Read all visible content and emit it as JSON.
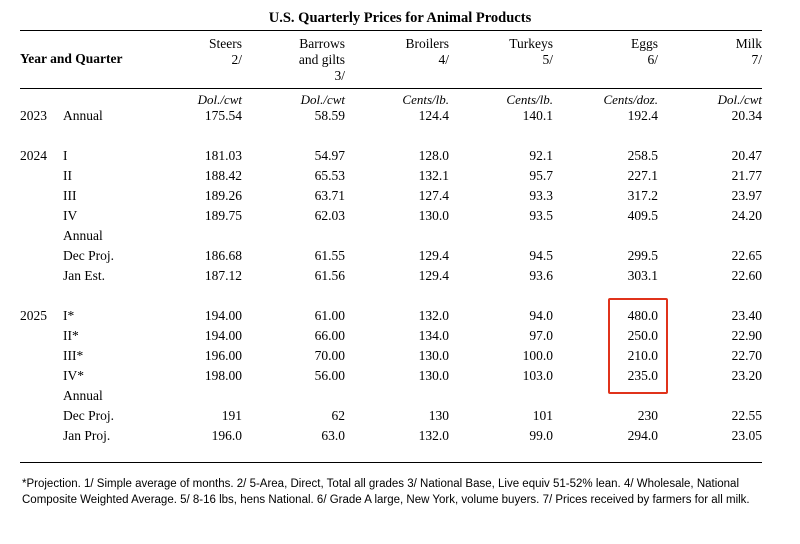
{
  "title": "U.S. Quarterly Prices for Animal Products",
  "row_header": "Year and Quarter",
  "columns": [
    {
      "name": "Steers",
      "note": "2/",
      "unit": "Dol./cwt"
    },
    {
      "name": "Barrows",
      "name2": "and gilts",
      "note": "3/",
      "unit": "Dol./cwt"
    },
    {
      "name": "Broilers",
      "note": "4/",
      "unit": "Cents/lb."
    },
    {
      "name": "Turkeys",
      "note": "5/",
      "unit": "Cents/lb."
    },
    {
      "name": "Eggs",
      "note": "6/",
      "unit": "Cents/doz."
    },
    {
      "name": "Milk",
      "note": "7/",
      "unit": "Dol./cwt"
    }
  ],
  "rows": [
    {
      "year": "2023",
      "label": "Annual",
      "values": [
        "175.54",
        "58.59",
        "124.4",
        "140.1",
        "192.4",
        "20.34"
      ]
    },
    {
      "year": "2024",
      "label": "I",
      "values": [
        "181.03",
        "54.97",
        "128.0",
        "92.1",
        "258.5",
        "20.47"
      ]
    },
    {
      "year": "",
      "label": "II",
      "values": [
        "188.42",
        "65.53",
        "132.1",
        "95.7",
        "227.1",
        "21.77"
      ]
    },
    {
      "year": "",
      "label": "III",
      "values": [
        "189.26",
        "63.71",
        "127.4",
        "93.3",
        "317.2",
        "23.97"
      ]
    },
    {
      "year": "",
      "label": "IV",
      "values": [
        "189.75",
        "62.03",
        "130.0",
        "93.5",
        "409.5",
        "24.20"
      ]
    },
    {
      "year": "",
      "label": "Annual",
      "values": [
        "",
        "",
        "",
        "",
        "",
        ""
      ]
    },
    {
      "year": "",
      "label": "Dec Proj.",
      "values": [
        "186.68",
        "61.55",
        "129.4",
        "94.5",
        "299.5",
        "22.65"
      ]
    },
    {
      "year": "",
      "label": "Jan Est.",
      "values": [
        "187.12",
        "61.56",
        "129.4",
        "93.6",
        "303.1",
        "22.60"
      ]
    },
    {
      "year": "2025",
      "label": "I*",
      "values": [
        "194.00",
        "61.00",
        "132.0",
        "94.0",
        "480.0",
        "23.40"
      ]
    },
    {
      "year": "",
      "label": "II*",
      "values": [
        "194.00",
        "66.00",
        "134.0",
        "97.0",
        "250.0",
        "22.90"
      ]
    },
    {
      "year": "",
      "label": "III*",
      "values": [
        "196.00",
        "70.00",
        "130.0",
        "100.0",
        "210.0",
        "22.70"
      ]
    },
    {
      "year": "",
      "label": "IV*",
      "values": [
        "198.00",
        "56.00",
        "130.0",
        "103.0",
        "235.0",
        "23.20"
      ]
    },
    {
      "year": "",
      "label": "Annual",
      "values": [
        "",
        "",
        "",
        "",
        "",
        ""
      ]
    },
    {
      "year": "",
      "label": "Dec Proj.",
      "values": [
        "191",
        "62",
        "130",
        "101",
        "230",
        "22.55"
      ]
    },
    {
      "year": "",
      "label": "Jan Proj.",
      "values": [
        "196.0",
        "63.0",
        "132.0",
        "99.0",
        "294.0",
        "23.05"
      ]
    }
  ],
  "footnote": "*Projection. 1/ Simple average of months. 2/ 5-Area, Direct, Total all grades 3/ National Base, Live equiv 51-52% lean. 4/ Wholesale, National Composite Weighted Average. 5/ 8-16 lbs, hens National. 6/ Grade A large, New York, volume buyers. 7/ Prices received by farmers for all milk.",
  "highlight_color": "#e0331b"
}
